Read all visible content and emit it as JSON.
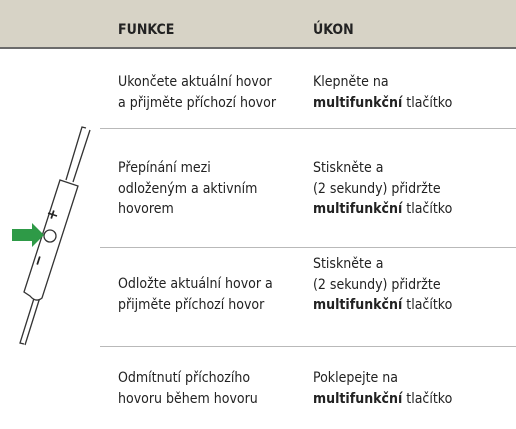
{
  "header": {
    "function": "FUNKCE",
    "action": "ÚKON"
  },
  "illustration": {
    "plus": "+",
    "minus": "−"
  },
  "table": {
    "rows": [
      {
        "function": [
          "Ukončete aktuální hovor",
          "a přijměte příchozí hovor"
        ],
        "action": {
          "lines": [
            "Klepněte na"
          ],
          "bold": "multifunkční",
          "after": "tlačítko"
        }
      },
      {
        "function": [
          "Přepínání mezi",
          "odloženým a aktivním",
          "hovorem"
        ],
        "action": {
          "lines": [
            "Stiskněte a",
            "(2 sekundy) přidržte"
          ],
          "bold": "multifunkční",
          "after": "tlačítko"
        }
      },
      {
        "function": [
          "Odložte aktuální hovor a",
          "přijměte příchozí hovor"
        ],
        "action": {
          "lines": [
            "Stiskněte a",
            "(2 sekundy) přidržte"
          ],
          "bold": "multifunkční",
          "after": "tlačítko"
        }
      },
      {
        "function": [
          "Odmítnutí příchozího",
          "hovoru během hovoru"
        ],
        "action": {
          "lines": [
            "Poklepejte na"
          ],
          "bold": "multifunkční",
          "after": "tlačítko"
        }
      }
    ]
  }
}
